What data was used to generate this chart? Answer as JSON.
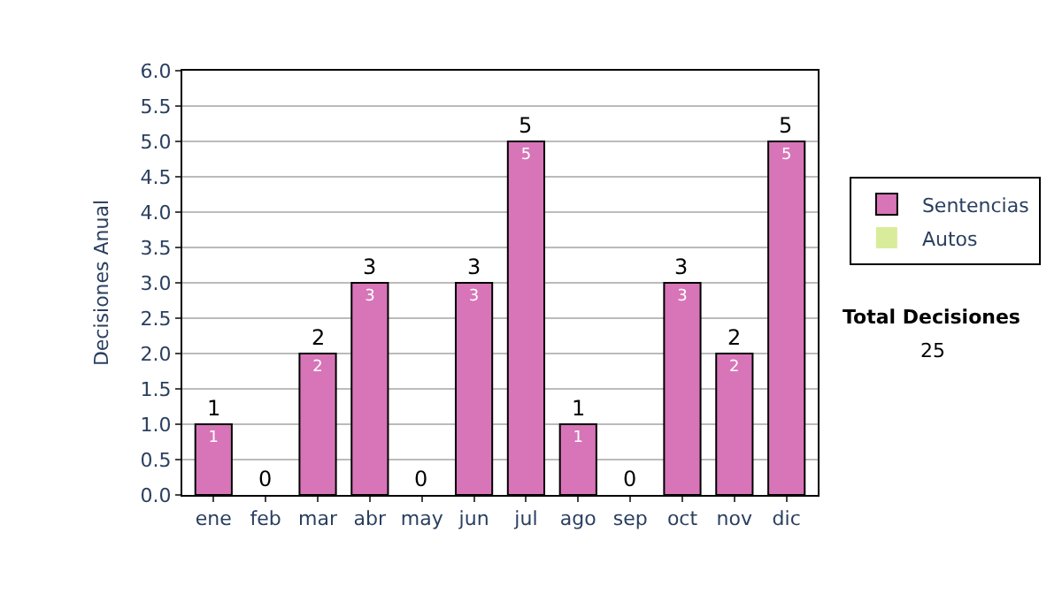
{
  "chart_data": {
    "type": "bar",
    "stacked": true,
    "ylabel": "Decisiones Anual",
    "categories": [
      "ene",
      "feb",
      "mar",
      "abr",
      "may",
      "jun",
      "jul",
      "ago",
      "sep",
      "oct",
      "nov",
      "dic"
    ],
    "series": [
      {
        "name": "Sentencias",
        "color": "#d775b8",
        "values": [
          1,
          0,
          2,
          3,
          0,
          3,
          5,
          1,
          0,
          3,
          2,
          5
        ],
        "value_labels": [
          "1",
          null,
          "2",
          "3",
          null,
          "3",
          "5",
          "1",
          null,
          "3",
          "2",
          "5"
        ]
      },
      {
        "name": "Autos",
        "color": "#d9ec9c",
        "values": [
          0,
          0,
          0,
          0,
          0,
          0,
          0,
          0,
          0,
          0,
          0,
          0
        ]
      }
    ],
    "totals": [
      "1",
      "0",
      "2",
      "3",
      "0",
      "3",
      "5",
      "1",
      "0",
      "3",
      "2",
      "5"
    ],
    "ylim": [
      0,
      6
    ],
    "yticks": [
      {
        "value": 0,
        "label": "0.0"
      },
      {
        "value": 0.5,
        "label": "0.5"
      },
      {
        "value": 1,
        "label": "1.0"
      },
      {
        "value": 1.5,
        "label": "1.5"
      },
      {
        "value": 2,
        "label": "2.0"
      },
      {
        "value": 2.5,
        "label": "2.5"
      },
      {
        "value": 3,
        "label": "3.0"
      },
      {
        "value": 3.5,
        "label": "3.5"
      },
      {
        "value": 4,
        "label": "4.0"
      },
      {
        "value": 4.5,
        "label": "4.5"
      },
      {
        "value": 5,
        "label": "5.0"
      },
      {
        "value": 5.5,
        "label": "5.5"
      },
      {
        "value": 6,
        "label": "6.0"
      }
    ],
    "grid": "y",
    "legend": "right",
    "annotations": [
      "Total Decisiones",
      "25"
    ]
  }
}
